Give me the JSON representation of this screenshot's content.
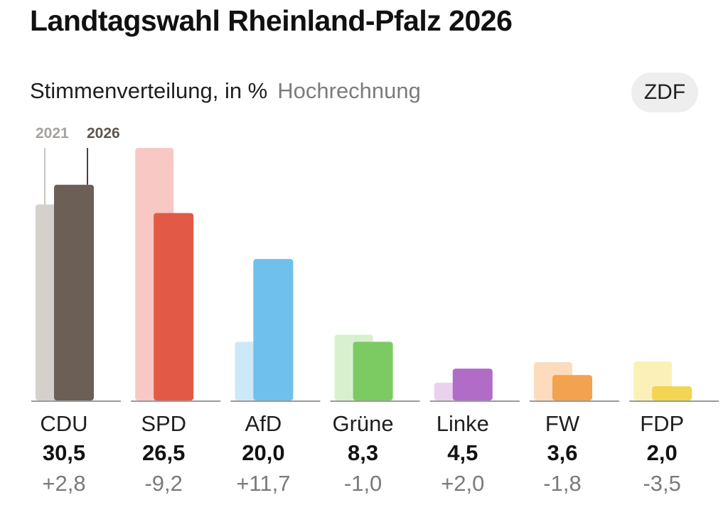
{
  "title": "Landtagswahl Rheinland-Pfalz 2026",
  "subtitle": "Stimmenverteilung, in %",
  "subtitle_hint": "Hochrechnung",
  "source_badge": "ZDF",
  "legend": {
    "previous": "2021",
    "current": "2026"
  },
  "chart_data": {
    "type": "bar",
    "categories": [
      "CDU",
      "SPD",
      "AfD",
      "Grüne",
      "Linke",
      "FW",
      "FDP"
    ],
    "series": [
      {
        "name": "2021",
        "values": [
          27.7,
          35.7,
          8.3,
          9.3,
          2.5,
          5.4,
          5.5
        ]
      },
      {
        "name": "2026",
        "values": [
          30.5,
          26.5,
          20.0,
          8.3,
          4.5,
          3.6,
          2.0
        ]
      }
    ],
    "value_labels": [
      "30,5",
      "26,5",
      "20,0",
      "8,3",
      "4,5",
      "3,6",
      "2,0"
    ],
    "diff_labels": [
      "+2,8",
      "-9,2",
      "+11,7",
      "-1,0",
      "+2,0",
      "-1,8",
      "-3,5"
    ],
    "colors_current": [
      "#6b5f56",
      "#e25a45",
      "#6fc0ec",
      "#7ccb62",
      "#b06cc6",
      "#f3a24f",
      "#f2d552"
    ],
    "colors_previous": [
      "#d4d0cc",
      "#f7c8c4",
      "#cce9f8",
      "#d9f0cf",
      "#ead1ef",
      "#fcdcbc",
      "#fbf0b8"
    ],
    "baseline_color": "#9b9b9b",
    "ylim": [
      0,
      36
    ]
  }
}
